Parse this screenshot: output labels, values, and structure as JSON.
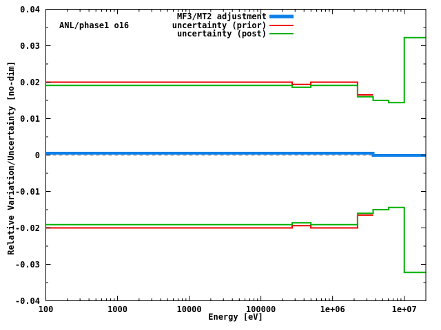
{
  "chart_data": {
    "type": "line",
    "title": "ANL/phase1 o16",
    "xlabel": "Energy [eV]",
    "ylabel": "Relative Variation/Uncertainty [no-dim]",
    "x_scale": "log",
    "xlim": [
      100,
      20000000
    ],
    "ylim": [
      -0.04,
      0.04
    ],
    "grid": false,
    "legend_position": "top-inside",
    "background": "#ffffff",
    "axis_color": "#000000",
    "x_ticks": [
      {
        "value": 100,
        "label": "100"
      },
      {
        "value": 1000,
        "label": "1000"
      },
      {
        "value": 10000,
        "label": "10000"
      },
      {
        "value": 100000,
        "label": "100000"
      },
      {
        "value": 1000000,
        "label": "1e+06"
      },
      {
        "value": 10000000,
        "label": "1e+07"
      }
    ],
    "x_minor_multipliers": [
      2,
      3,
      4,
      5,
      6,
      7,
      8,
      9
    ],
    "y_ticks": [
      {
        "value": 0.04,
        "label": "0.04"
      },
      {
        "value": 0.03,
        "label": "0.03"
      },
      {
        "value": 0.02,
        "label": "0.02"
      },
      {
        "value": 0.01,
        "label": "0.01"
      },
      {
        "value": 0,
        "label": "0"
      },
      {
        "value": -0.01,
        "label": "-0.01"
      },
      {
        "value": -0.02,
        "label": "-0.02"
      },
      {
        "value": -0.03,
        "label": "-0.03"
      },
      {
        "value": -0.04,
        "label": "-0.04"
      }
    ],
    "y_minor_step": 0.005,
    "zero_line": {
      "value": 0,
      "color": "#a0a0a0",
      "style": "dashed"
    },
    "series": [
      {
        "name": "MF3/MT2 adjustment",
        "color": "#0e80e8",
        "line_width": 4,
        "branches": [
          [
            {
              "from": 100,
              "to": 3678800,
              "value": 0.0005
            },
            {
              "from": 3678800,
              "to": 20000000,
              "value": -0.0001
            }
          ]
        ]
      },
      {
        "name": "uncertainty (prior)",
        "color": "#ee0000",
        "line_width": 2,
        "branches": [
          [
            {
              "from": 100,
              "to": 273240,
              "value": 0.02
            },
            {
              "from": 273240,
              "to": 497870,
              "value": 0.0194
            },
            {
              "from": 497870,
              "to": 2231300,
              "value": 0.02
            },
            {
              "from": 2231300,
              "to": 3678800,
              "value": 0.0165
            }
          ],
          [
            {
              "from": 100,
              "to": 273240,
              "value": -0.02
            },
            {
              "from": 273240,
              "to": 497870,
              "value": -0.0194
            },
            {
              "from": 497870,
              "to": 2231300,
              "value": -0.02
            },
            {
              "from": 2231300,
              "to": 3678800,
              "value": -0.0165
            }
          ]
        ]
      },
      {
        "name": "uncertainty (post)",
        "color": "#00b000",
        "line_width": 2,
        "branches": [
          [
            {
              "from": 100,
              "to": 273240,
              "value": 0.0191
            },
            {
              "from": 273240,
              "to": 497870,
              "value": 0.0186
            },
            {
              "from": 497870,
              "to": 2231300,
              "value": 0.0191
            },
            {
              "from": 2231300,
              "to": 3678800,
              "value": 0.016
            },
            {
              "from": 3678800,
              "to": 6065300,
              "value": 0.015
            },
            {
              "from": 6065300,
              "to": 10000000,
              "value": 0.0144
            },
            {
              "from": 10000000,
              "to": 20000000,
              "value": 0.0322
            }
          ],
          [
            {
              "from": 100,
              "to": 273240,
              "value": -0.0191
            },
            {
              "from": 273240,
              "to": 497870,
              "value": -0.0186
            },
            {
              "from": 497870,
              "to": 2231300,
              "value": -0.0191
            },
            {
              "from": 2231300,
              "to": 3678800,
              "value": -0.016
            },
            {
              "from": 3678800,
              "to": 6065300,
              "value": -0.015
            },
            {
              "from": 6065300,
              "to": 10000000,
              "value": -0.0144
            },
            {
              "from": 10000000,
              "to": 20000000,
              "value": -0.0322
            }
          ]
        ]
      }
    ]
  }
}
